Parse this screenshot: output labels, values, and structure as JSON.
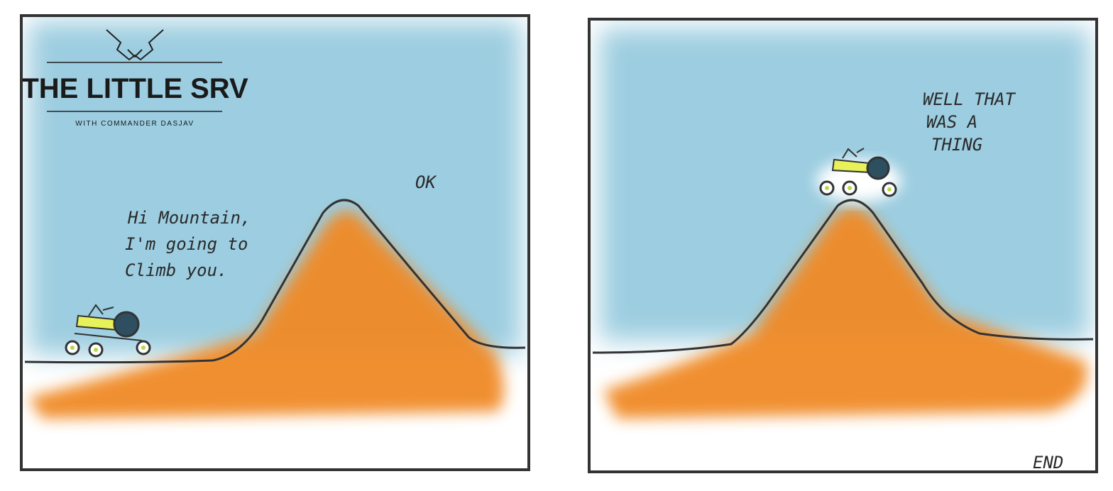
{
  "panels": [
    {
      "header": {
        "title": "THE LITTLE SRV",
        "subtitle": "WITH COMMANDER DASJAV"
      },
      "speech": [
        {
          "lines": [
            "Hi Mountain,",
            "I'm going to",
            "Climb you."
          ]
        },
        {
          "lines": [
            "OK"
          ]
        }
      ]
    },
    {
      "speech": [
        {
          "lines": [
            "WELL THAT",
            "WAS A",
            "THING"
          ]
        }
      ],
      "caption": "END"
    }
  ]
}
